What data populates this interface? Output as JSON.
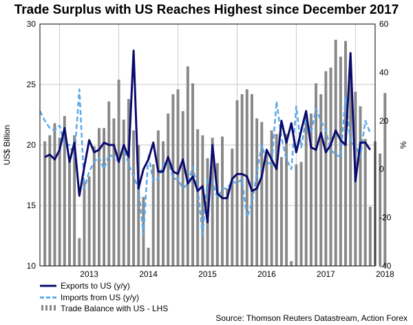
{
  "chart_data": {
    "type": "bar+line",
    "title": "Trade Surplus with US Reaches Highest since December 2017",
    "ylabel_left": "US$ Billion",
    "ylabel_right": "%",
    "left_axis": {
      "min": 10,
      "max": 30,
      "ticks": [
        10,
        15,
        20,
        25,
        30
      ]
    },
    "right_axis": {
      "min": -40,
      "max": 60,
      "ticks": [
        -40,
        -20,
        0,
        20,
        40,
        60
      ]
    },
    "x_axis": {
      "start": "2012-09",
      "end": "2018-05",
      "year_labels": [
        "2013",
        "2014",
        "2015",
        "2016",
        "2017",
        "2018"
      ]
    },
    "legend": {
      "placement": "bottom-left",
      "entries": [
        "Exports to US (y/y)",
        "Imports from US (y/y)",
        "Trade Balance with US - LHS"
      ]
    },
    "series": [
      {
        "name": "Trade Balance with US - LHS",
        "axis": "left",
        "kind": "bar",
        "color": "#888888",
        "start": "2012-10",
        "values": [
          20.3,
          20.8,
          21.8,
          20.6,
          22.4,
          18.7,
          20.8,
          12.3,
          17.0,
          17.4,
          19.9,
          21.4,
          21.4,
          23.6,
          22.2,
          25.4,
          22.1,
          23.8,
          21.2,
          20.0,
          15.7,
          11.5,
          18.4,
          21.2,
          20.3,
          22.6,
          24.2,
          24.6,
          22.8,
          26.5,
          25.1,
          21.3,
          20.8,
          18.9,
          20.6,
          18.5,
          20.7,
          16.4,
          19.7,
          23.7,
          24.2,
          24.6,
          24.2,
          22.2,
          21.9,
          19.3,
          21.2,
          20.9,
          19.0,
          20.9,
          10.4,
          18.4,
          18.6,
          22.3,
          22.6,
          25.1,
          24.2,
          26.1,
          26.4,
          28.7,
          27.3,
          28.6,
          26.3,
          24.4,
          23.2,
          20.5,
          14.9,
          20.3,
          19.3,
          24.3
        ]
      },
      {
        "name": "Exports to US (y/y)",
        "axis": "right",
        "kind": "line",
        "color": "#0a0a6e",
        "start": "2012-10",
        "values": [
          5,
          6,
          4,
          8,
          17,
          3,
          11,
          -11,
          1,
          12,
          7,
          8,
          11,
          10,
          10,
          3,
          10,
          5,
          49,
          -8,
          0,
          4,
          11,
          -1,
          -1,
          5,
          -1,
          -2,
          4,
          -6,
          -3,
          -9,
          -7,
          -22,
          10,
          -10,
          -12,
          -12,
          -4,
          -2,
          -2,
          -3,
          -9,
          -8,
          -3,
          8,
          4,
          0,
          20,
          11,
          19,
          7,
          16,
          24,
          9,
          8,
          15,
          7,
          10,
          16,
          12,
          10,
          48,
          -5,
          11,
          11,
          8
        ]
      },
      {
        "name": "Imports from US (y/y)",
        "axis": "right",
        "kind": "line",
        "color": "#5aa9ea",
        "dashed": true,
        "start": "2012-09",
        "values": [
          24,
          20,
          17,
          16,
          18,
          10,
          10,
          5,
          33,
          -8,
          -1,
          3,
          5,
          0,
          6,
          5,
          3,
          9,
          2,
          -3,
          -8,
          -27,
          6,
          -5,
          -4,
          2,
          4,
          -4,
          -4,
          -8,
          -6,
          1,
          -8,
          -27,
          -4,
          -5,
          -12,
          -8,
          -8,
          -5,
          -6,
          -4,
          -20,
          -14,
          -2,
          10,
          3,
          2,
          28,
          13,
          4,
          0,
          26,
          9,
          21,
          15,
          25,
          20,
          16,
          8,
          6,
          5,
          30,
          11,
          10,
          5,
          20,
          15
        ]
      }
    ],
    "source": "Source: Thomson Reuters Datastream, Action Forex"
  }
}
